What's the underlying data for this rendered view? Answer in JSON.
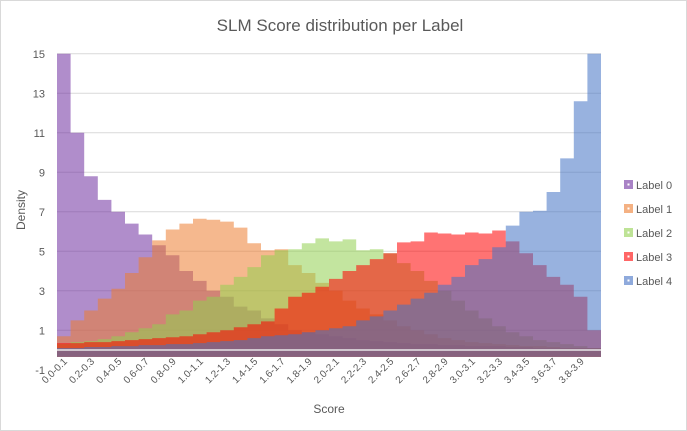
{
  "chart_data": {
    "type": "area",
    "title": "SLM Score distribution per Label",
    "xlabel": "Score",
    "ylabel": "Density",
    "ylim": [
      -1,
      15
    ],
    "yticks": [
      -1,
      1,
      3,
      5,
      7,
      9,
      11,
      13,
      15
    ],
    "grid": true,
    "legend_position": "right",
    "categories": [
      "0.0-0.1",
      "0.1-0.2",
      "0.2-0.3",
      "0.3-0.4",
      "0.4-0.5",
      "0.5-0.6",
      "0.6-0.7",
      "0.7-0.8",
      "0.8-0.9",
      "0.9-1.0",
      "1.0-1.1",
      "1.1-1.2",
      "1.2-1.3",
      "1.3-1.4",
      "1.4-1.5",
      "1.5-1.6",
      "1.6-1.7",
      "1.7-1.8",
      "1.8-1.9",
      "1.9-2.0",
      "2.0-2.1",
      "2.1-2.2",
      "2.2-2.3",
      "2.3-2.4",
      "2.4-2.5",
      "2.5-2.6",
      "2.6-2.7",
      "2.7-2.8",
      "2.8-2.9",
      "2.9-3.0",
      "3.0-3.1",
      "3.1-3.2",
      "3.2-3.3",
      "3.3-3.4",
      "3.4-3.5",
      "3.5-3.6",
      "3.6-3.7",
      "3.7-3.8",
      "3.8-3.9",
      "3.9-4.0"
    ],
    "series": [
      {
        "name": "Label 0",
        "color": "#7030A0",
        "values": [
          15,
          11,
          8.8,
          7.6,
          7.0,
          6.4,
          5.85,
          5.3,
          4.8,
          4.0,
          3.5,
          3.0,
          2.7,
          2.2,
          2.0,
          1.6,
          1.3,
          1.0,
          0.9,
          0.8,
          0.7,
          0.6,
          0.5,
          0.45,
          0.4,
          0.35,
          0.3,
          0.3,
          0.25,
          0.25,
          0.2,
          0.2,
          0.2,
          0.15,
          0.15,
          0.1,
          0.1,
          0.1,
          0.1,
          0.1
        ]
      },
      {
        "name": "Label 1",
        "color": "#ED7D31",
        "values": [
          0.7,
          1.5,
          2.0,
          2.6,
          3.1,
          3.9,
          4.7,
          5.55,
          6.1,
          6.4,
          6.65,
          6.6,
          6.5,
          6.2,
          5.4,
          5.05,
          5.1,
          4.3,
          3.9,
          3.4,
          3.0,
          2.5,
          2.1,
          1.8,
          1.5,
          1.2,
          1.0,
          0.8,
          0.6,
          0.5,
          0.4,
          0.35,
          0.3,
          0.25,
          0.2,
          0.2,
          0.15,
          0.1,
          0.1,
          0.1
        ]
      },
      {
        "name": "Label 2",
        "color": "#92D050",
        "values": [
          0.3,
          0.4,
          0.45,
          0.55,
          0.7,
          0.9,
          1.1,
          1.3,
          1.8,
          2.0,
          2.5,
          2.7,
          3.3,
          3.7,
          4.2,
          4.8,
          5.05,
          5.1,
          5.4,
          5.65,
          5.5,
          5.6,
          5.05,
          5.1,
          4.9,
          4.4,
          4.0,
          3.5,
          3.0,
          2.5,
          2.0,
          1.6,
          1.2,
          0.9,
          0.7,
          0.5,
          0.4,
          0.3,
          0.2,
          0.1
        ]
      },
      {
        "name": "Label 3",
        "color": "#FF0000",
        "values": [
          0.35,
          0.35,
          0.4,
          0.4,
          0.45,
          0.5,
          0.55,
          0.6,
          0.65,
          0.7,
          0.8,
          0.9,
          1.0,
          1.15,
          1.3,
          1.45,
          2.1,
          2.7,
          2.9,
          3.2,
          3.6,
          4.0,
          4.3,
          4.6,
          4.9,
          5.45,
          5.5,
          5.95,
          5.9,
          5.85,
          5.95,
          5.9,
          6.05,
          5.5,
          4.9,
          4.3,
          3.7,
          3.3,
          2.7,
          1.0
        ]
      },
      {
        "name": "Label 4",
        "color": "#4472C4",
        "values": [
          0.1,
          0.1,
          0.15,
          0.15,
          0.2,
          0.2,
          0.25,
          0.25,
          0.3,
          0.3,
          0.35,
          0.4,
          0.45,
          0.5,
          0.6,
          0.7,
          0.75,
          0.8,
          0.9,
          1.0,
          1.1,
          1.2,
          1.5,
          1.7,
          2.0,
          2.3,
          2.6,
          2.9,
          3.3,
          3.7,
          4.3,
          4.6,
          5.2,
          6.3,
          7.0,
          7.05,
          8.0,
          9.7,
          12.6,
          15
        ]
      }
    ]
  }
}
